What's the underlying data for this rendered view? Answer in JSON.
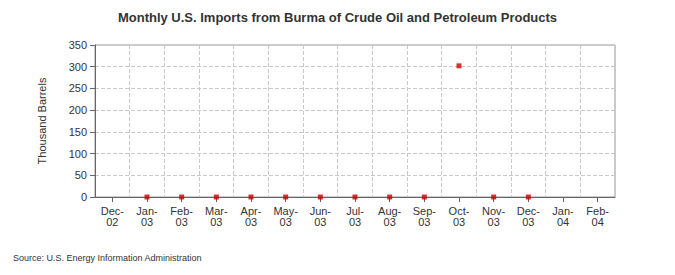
{
  "chart_data": {
    "type": "scatter",
    "title": "Monthly U.S. Imports from Burma of Crude Oil and Petroleum Products",
    "y_label": "Thousand Barrels",
    "source": "Source: U.S. Energy Information Administration",
    "categories": [
      "Dec-02",
      "Jan-03",
      "Feb-03",
      "Mar-03",
      "Apr-03",
      "May-03",
      "Jun-03",
      "Jul-03",
      "Aug-03",
      "Sep-03",
      "Oct-03",
      "Nov-03",
      "Dec-03",
      "Jan-04",
      "Feb-04"
    ],
    "values": [
      null,
      0,
      0,
      0,
      0,
      0,
      0,
      0,
      0,
      0,
      302,
      0,
      0,
      null,
      null
    ],
    "color": "#cc0000",
    "marker": "square",
    "ylim": [
      0,
      350
    ],
    "yticks": [
      0,
      50,
      100,
      150,
      200,
      250,
      300,
      350
    ],
    "grid": true
  }
}
